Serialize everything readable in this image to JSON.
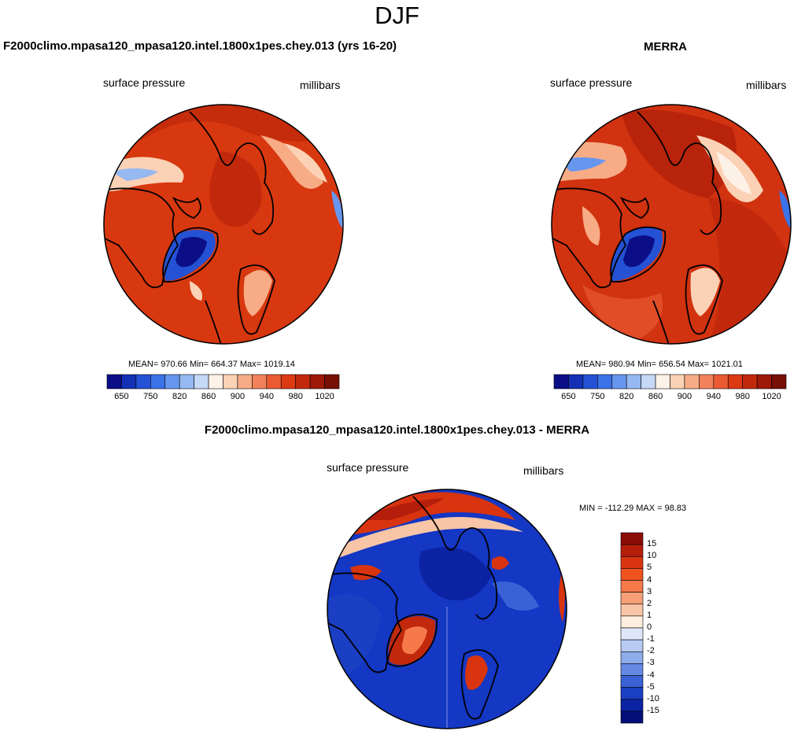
{
  "figure": {
    "title": "DJF"
  },
  "panels": [
    {
      "id": "model",
      "title": "F2000climo.mpasa120_mpasa120.intel.1800x1pes.chey.013 (yrs 16-20)",
      "left_label": "surface pressure",
      "right_label": "millibars",
      "stats": "MEAN= 970.66  Min= 664.37  Max= 1019.14"
    },
    {
      "id": "obs",
      "title": "MERRA",
      "left_label": "surface pressure",
      "right_label": "millibars",
      "stats": "MEAN= 980.94  Min= 656.54  Max= 1021.01"
    },
    {
      "id": "diff",
      "title": "F2000climo.mpasa120_mpasa120.intel.1800x1pes.chey.013 - MERRA",
      "left_label": "surface pressure",
      "right_label": "millibars",
      "stats": "MIN = -112.29 MAX =  98.83"
    }
  ],
  "chart_data": [
    {
      "type": "heatmap",
      "projection": "north polar stereographic",
      "title": "F2000climo.mpasa120_mpasa120.intel.1800x1pes.chey.013 (yrs 16-20)",
      "variable": "surface pressure",
      "units": "millibars",
      "mean": 970.66,
      "min": 664.37,
      "max": 1019.14,
      "colorbar": {
        "orientation": "horizontal",
        "levels": [
          650,
          700,
          750,
          800,
          820,
          840,
          860,
          880,
          900,
          920,
          940,
          960,
          980,
          1000,
          1020
        ],
        "tick_labels": [
          "650",
          "750",
          "820",
          "860",
          "900",
          "940",
          "980",
          "1020"
        ],
        "colors": [
          "#0b0e87",
          "#1430b5",
          "#2552d4",
          "#3c72e8",
          "#6796ee",
          "#97b9f2",
          "#c5d8f6",
          "#fdf2e7",
          "#fbd2b5",
          "#f7ac86",
          "#f2825b",
          "#ea5a33",
          "#dd3a14",
          "#c2290c",
          "#9e1908",
          "#770f06"
        ]
      }
    },
    {
      "type": "heatmap",
      "projection": "north polar stereographic",
      "title": "MERRA",
      "variable": "surface pressure",
      "units": "millibars",
      "mean": 980.94,
      "min": 656.54,
      "max": 1021.01,
      "colorbar": {
        "orientation": "horizontal",
        "levels": [
          650,
          700,
          750,
          800,
          820,
          840,
          860,
          880,
          900,
          920,
          940,
          960,
          980,
          1000,
          1020
        ],
        "tick_labels": [
          "650",
          "750",
          "820",
          "860",
          "900",
          "940",
          "980",
          "1020"
        ],
        "colors": [
          "#0b0e87",
          "#1430b5",
          "#2552d4",
          "#3c72e8",
          "#6796ee",
          "#97b9f2",
          "#c5d8f6",
          "#fdf2e7",
          "#fbd2b5",
          "#f7ac86",
          "#f2825b",
          "#ea5a33",
          "#dd3a14",
          "#c2290c",
          "#9e1908",
          "#770f06"
        ]
      }
    },
    {
      "type": "heatmap",
      "projection": "north polar stereographic",
      "title": "F2000climo.mpasa120_mpasa120.intel.1800x1pes.chey.013 - MERRA",
      "variable": "surface pressure",
      "units": "millibars",
      "min": -112.29,
      "max": 98.83,
      "colorbar": {
        "orientation": "vertical",
        "levels": [
          -15,
          -10,
          -5,
          -4,
          -3,
          -2,
          -1,
          0,
          1,
          2,
          3,
          4,
          5,
          10,
          15
        ],
        "tick_labels": [
          "15",
          "10",
          "5",
          "4",
          "3",
          "2",
          "1",
          "0",
          "-1",
          "-2",
          "-3",
          "-4",
          "-5",
          "-10",
          "-15"
        ],
        "colors": [
          "#8b0d06",
          "#b51e0b",
          "#d8340f",
          "#ee5320",
          "#f5794a",
          "#f7a077",
          "#f8c6a6",
          "#fdeedd",
          "#dde7f8",
          "#b7cbf2",
          "#8eabeb",
          "#6589e3",
          "#3a62d6",
          "#1a3fc2",
          "#0b22a2",
          "#050f78"
        ]
      }
    }
  ]
}
